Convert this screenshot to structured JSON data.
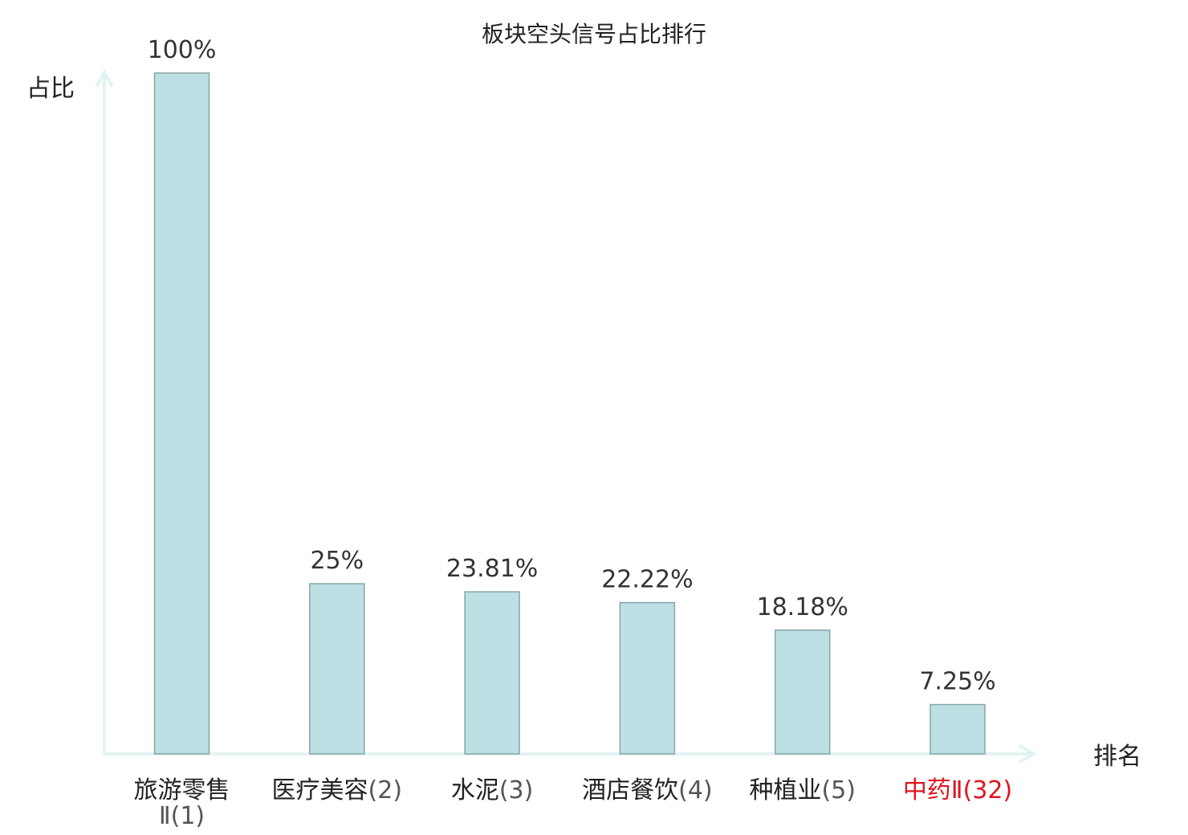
{
  "chart_data": {
    "type": "bar",
    "title": "板块空头信号占比排行",
    "ylabel": "占比",
    "xlabel": "排名",
    "ylim": [
      0,
      100
    ],
    "grid": false,
    "categories": [
      {
        "label": "旅游零售Ⅱ",
        "rank": "(1)",
        "highlight": false
      },
      {
        "label": "医疗美容",
        "rank": "(2)",
        "highlight": false
      },
      {
        "label": "水泥",
        "rank": "(3)",
        "highlight": false
      },
      {
        "label": "酒店餐饮",
        "rank": "(4)",
        "highlight": false
      },
      {
        "label": "种植业",
        "rank": "(5)",
        "highlight": false
      },
      {
        "label": "中药Ⅱ",
        "rank": "(32)",
        "highlight": true
      }
    ],
    "values": [
      100,
      25,
      23.81,
      22.22,
      18.18,
      7.25
    ],
    "value_labels": [
      "100%",
      "25%",
      "23.81%",
      "22.22%",
      "18.18%",
      "7.25%"
    ]
  },
  "colors": {
    "bar_fill": "#bce0e3",
    "bar_stroke": "#8aa5a8",
    "axis": "#e3f3f1",
    "text": "#222222",
    "value_text": "#333333",
    "highlight": "#e0141e"
  }
}
